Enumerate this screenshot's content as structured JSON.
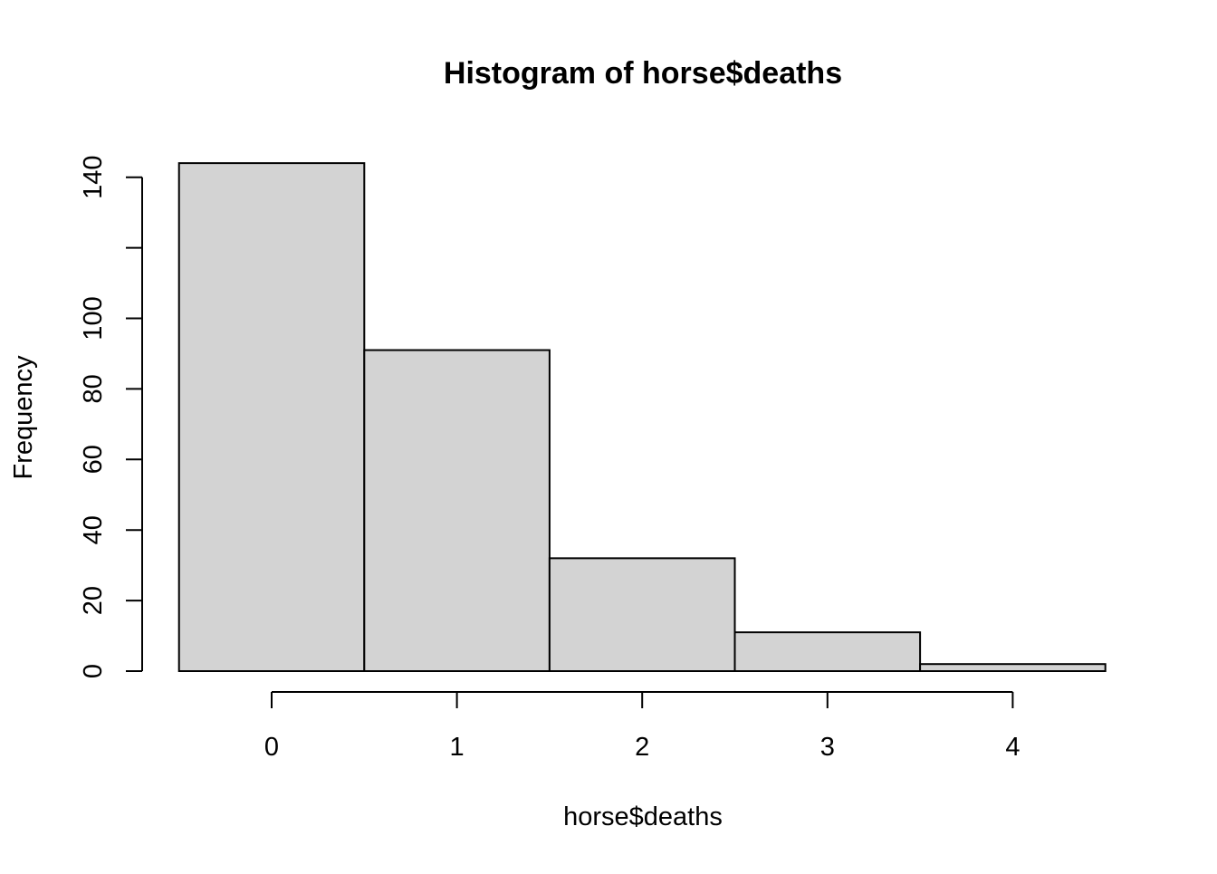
{
  "chart_data": {
    "type": "bar",
    "title": "Histogram of horse$deaths",
    "xlabel": "horse$deaths",
    "ylabel": "Frequency",
    "bins": [
      {
        "from": -0.5,
        "to": 0.5,
        "count": 144
      },
      {
        "from": 0.5,
        "to": 1.5,
        "count": 91
      },
      {
        "from": 1.5,
        "to": 2.5,
        "count": 32
      },
      {
        "from": 2.5,
        "to": 3.5,
        "count": 11
      },
      {
        "from": 3.5,
        "to": 4.5,
        "count": 2
      }
    ],
    "xlim": [
      -0.5,
      4.5
    ],
    "ylim": [
      0,
      144
    ],
    "x_ticks": [
      0,
      1,
      2,
      3,
      4
    ],
    "x_tick_labels": [
      "0",
      "1",
      "2",
      "3",
      "4"
    ],
    "y_ticks": [
      0,
      20,
      40,
      60,
      80,
      100,
      120,
      140
    ],
    "y_tick_labels": [
      "0",
      "20",
      "40",
      "60",
      "80",
      "100",
      "",
      "140"
    ],
    "bar_fill": "#d3d3d3",
    "bar_stroke": "#000000",
    "grid": false,
    "legend": "none"
  }
}
